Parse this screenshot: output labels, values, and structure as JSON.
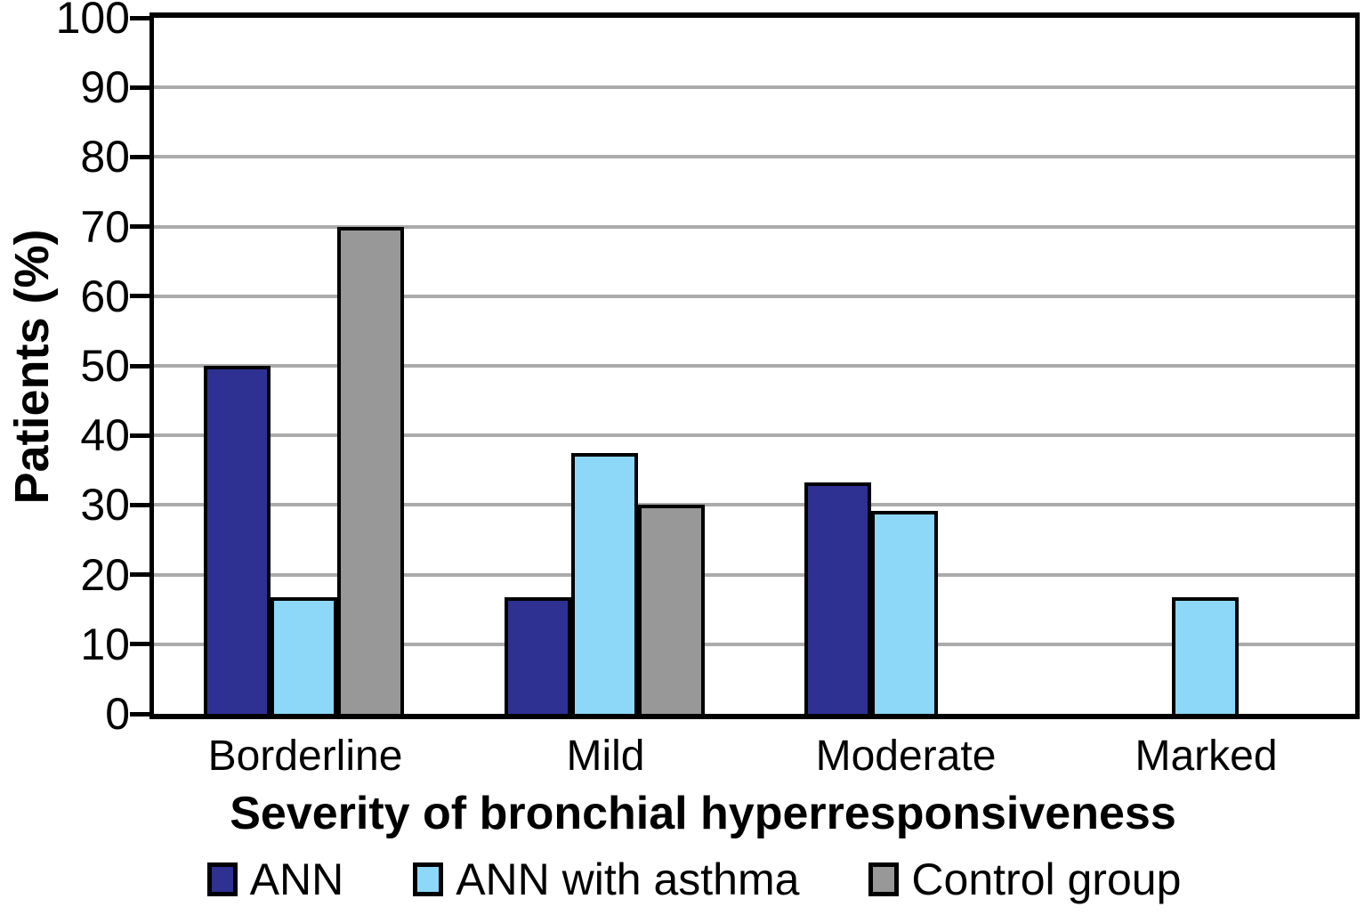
{
  "chart_data": {
    "type": "bar",
    "title": "",
    "categories": [
      "Borderline",
      "Mild",
      "Moderate",
      "Marked"
    ],
    "series": [
      {
        "name": "ANN",
        "color": "#2e3192",
        "values": [
          50,
          16.7,
          33.3,
          null
        ]
      },
      {
        "name": "ANN with asthma",
        "color": "#8dd8f8",
        "values": [
          16.7,
          37.5,
          29.2,
          16.7
        ]
      },
      {
        "name": "Control group",
        "color": "#989898",
        "values": [
          70,
          30,
          null,
          null
        ]
      }
    ],
    "xlabel": "Severity of bronchial hyperresponsiveness",
    "ylabel": "Patients (%)",
    "ylim": [
      0,
      100
    ],
    "yticks": [
      0,
      10,
      20,
      30,
      40,
      50,
      60,
      70,
      80,
      90,
      100
    ],
    "grid": true,
    "grid_color": "#ababab",
    "axis_color": "#000000",
    "legend_position": "bottom"
  }
}
